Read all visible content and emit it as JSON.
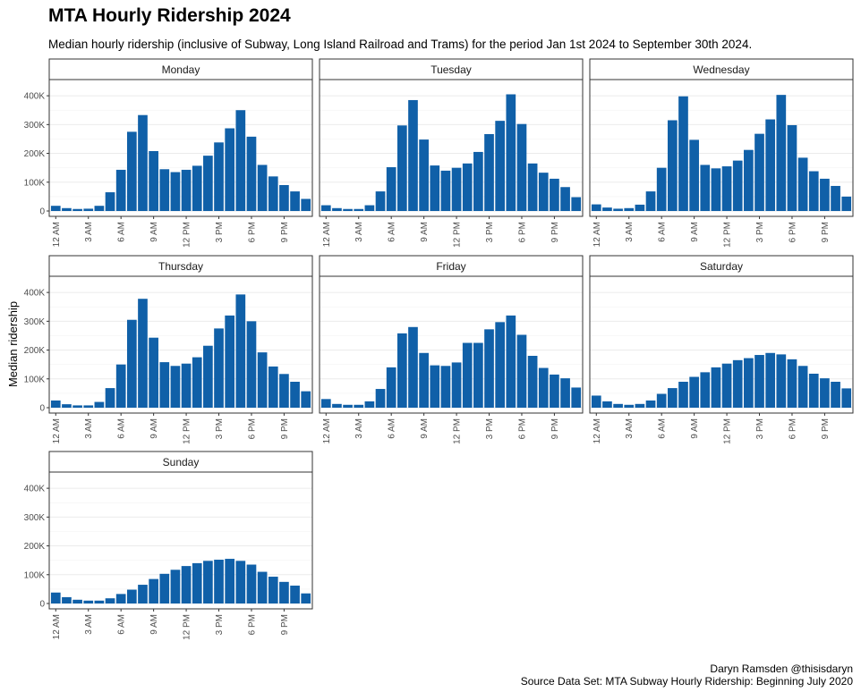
{
  "title": "MTA Hourly Ridership 2024",
  "subtitle": "Median hourly ridership (inclusive of Subway, Long Island Railroad and Trams) for the period Jan 1st 2024 to September 30th 2024.",
  "caption": {
    "line1": "Daryn Ramsden @thisisdaryn",
    "line2": "Source Data Set: MTA Subway Hourly Ridership: Beginning July 2020"
  },
  "colors": {
    "bar": "#1060A8",
    "grid": "#ebebeb",
    "border": "#333333",
    "strip_bg": "#ffffff"
  },
  "chart_data": {
    "type": "bar",
    "ylabel": "Median ridership",
    "ylim": [
      0,
      450000
    ],
    "y_ticks": [
      0,
      100000,
      200000,
      300000,
      400000
    ],
    "y_tick_labels": [
      "0",
      "100K",
      "200K",
      "300K",
      "400K"
    ],
    "x": [
      0,
      1,
      2,
      3,
      4,
      5,
      6,
      7,
      8,
      9,
      10,
      11,
      12,
      13,
      14,
      15,
      16,
      17,
      18,
      19,
      20,
      21,
      22,
      23
    ],
    "x_ticks": [
      0,
      3,
      6,
      9,
      12,
      15,
      18,
      21
    ],
    "x_tick_labels": [
      "12 AM",
      "3 AM",
      "6 AM",
      "9 AM",
      "12 PM",
      "3 PM",
      "6 PM",
      "9 PM"
    ],
    "grid": true,
    "facets": [
      {
        "name": "Monday",
        "values": [
          18000,
          10000,
          7000,
          8000,
          18000,
          65000,
          143000,
          275000,
          333000,
          208000,
          145000,
          135000,
          143000,
          157000,
          192000,
          238000,
          287000,
          350000,
          258000,
          160000,
          120000,
          90000,
          68000,
          42000
        ]
      },
      {
        "name": "Tuesday",
        "values": [
          20000,
          10000,
          7000,
          7000,
          20000,
          68000,
          152000,
          297000,
          385000,
          248000,
          158000,
          140000,
          150000,
          165000,
          205000,
          267000,
          313000,
          405000,
          302000,
          165000,
          133000,
          112000,
          83000,
          48000
        ]
      },
      {
        "name": "Wednesday",
        "values": [
          23000,
          12000,
          8000,
          10000,
          22000,
          68000,
          150000,
          315000,
          398000,
          247000,
          160000,
          148000,
          155000,
          175000,
          212000,
          268000,
          318000,
          403000,
          298000,
          185000,
          138000,
          112000,
          87000,
          50000
        ]
      },
      {
        "name": "Thursday",
        "values": [
          25000,
          12000,
          8000,
          8000,
          20000,
          68000,
          150000,
          305000,
          378000,
          243000,
          158000,
          145000,
          153000,
          175000,
          215000,
          275000,
          320000,
          393000,
          300000,
          192000,
          143000,
          117000,
          90000,
          57000
        ]
      },
      {
        "name": "Friday",
        "values": [
          30000,
          13000,
          10000,
          10000,
          22000,
          65000,
          140000,
          258000,
          280000,
          190000,
          147000,
          145000,
          157000,
          225000,
          225000,
          272000,
          297000,
          320000,
          253000,
          180000,
          138000,
          115000,
          102000,
          70000
        ]
      },
      {
        "name": "Saturday",
        "values": [
          42000,
          22000,
          13000,
          10000,
          13000,
          25000,
          48000,
          68000,
          90000,
          107000,
          123000,
          140000,
          153000,
          165000,
          172000,
          183000,
          190000,
          185000,
          168000,
          145000,
          118000,
          102000,
          90000,
          67000
        ]
      },
      {
        "name": "Sunday",
        "values": [
          38000,
          22000,
          13000,
          10000,
          10000,
          18000,
          33000,
          48000,
          65000,
          85000,
          103000,
          117000,
          130000,
          140000,
          148000,
          152000,
          155000,
          148000,
          135000,
          110000,
          93000,
          75000,
          62000,
          35000
        ]
      }
    ]
  }
}
